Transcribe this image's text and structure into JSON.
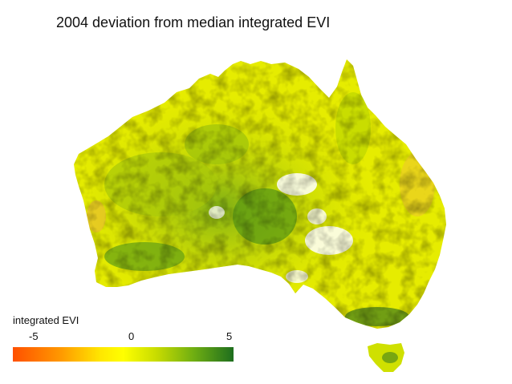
{
  "title": "2004 deviation from median integrated EVI",
  "legend": {
    "label": "integrated EVI",
    "ticks": [
      "-5",
      "0",
      "5"
    ],
    "colors": [
      "#ff5000",
      "#ff9a00",
      "#ffff00",
      "#9ec800",
      "#1e6e1e"
    ]
  },
  "map": {
    "region": "Australia including Tasmania",
    "variable": "deviation from median integrated EVI"
  }
}
